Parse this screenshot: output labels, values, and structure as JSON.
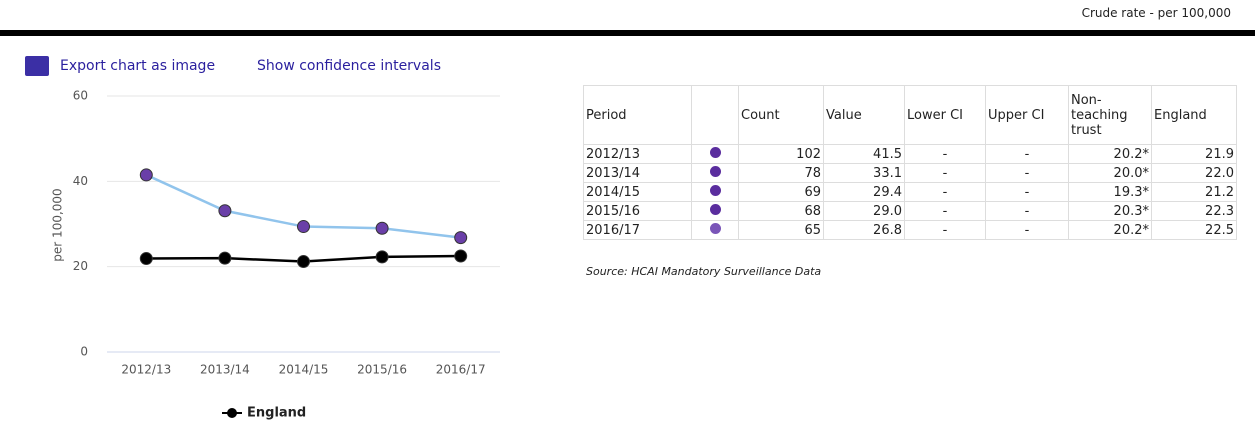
{
  "header": {
    "unit_note": "Crude rate - per 100,000"
  },
  "links": [
    "Export chart as image",
    "Show confidence intervals"
  ],
  "chart_data": {
    "type": "line",
    "categories": [
      "2012/13",
      "2013/14",
      "2014/15",
      "2015/16",
      "2016/17"
    ],
    "series": [
      {
        "color": "#6a3fa8",
        "line_color": "#91c4ec",
        "values": [
          41.5,
          33.1,
          29.4,
          29.0,
          26.8
        ]
      },
      {
        "name": "England",
        "color": "#000000",
        "line_color": "#000000",
        "values": [
          21.9,
          22.0,
          21.2,
          22.3,
          22.5
        ]
      }
    ],
    "ylim": [
      0,
      60
    ],
    "yticks": [
      0,
      20,
      40,
      60
    ],
    "ylabel": "per 100,000",
    "grid": true
  },
  "table": {
    "columns": [
      "Period",
      "Count",
      "Value",
      "Lower CI",
      "Upper CI",
      "Non-teaching trust",
      "England"
    ],
    "rows": [
      [
        "2012/13",
        "102",
        "41.5",
        "-",
        "-",
        "20.2*",
        "21.9"
      ],
      [
        "2013/14",
        "78",
        "33.1",
        "-",
        "-",
        "20.0*",
        "22.0"
      ],
      [
        "2014/15",
        "69",
        "29.4",
        "-",
        "-",
        "19.3*",
        "21.2"
      ],
      [
        "2015/16",
        "68",
        "29.0",
        "-",
        "-",
        "20.3*",
        "22.3"
      ],
      [
        "2016/17",
        "65",
        "26.8",
        "-",
        "-",
        "20.2*",
        "22.5"
      ]
    ],
    "source": "Source: HCAI Mandatory Surveillance Data"
  }
}
